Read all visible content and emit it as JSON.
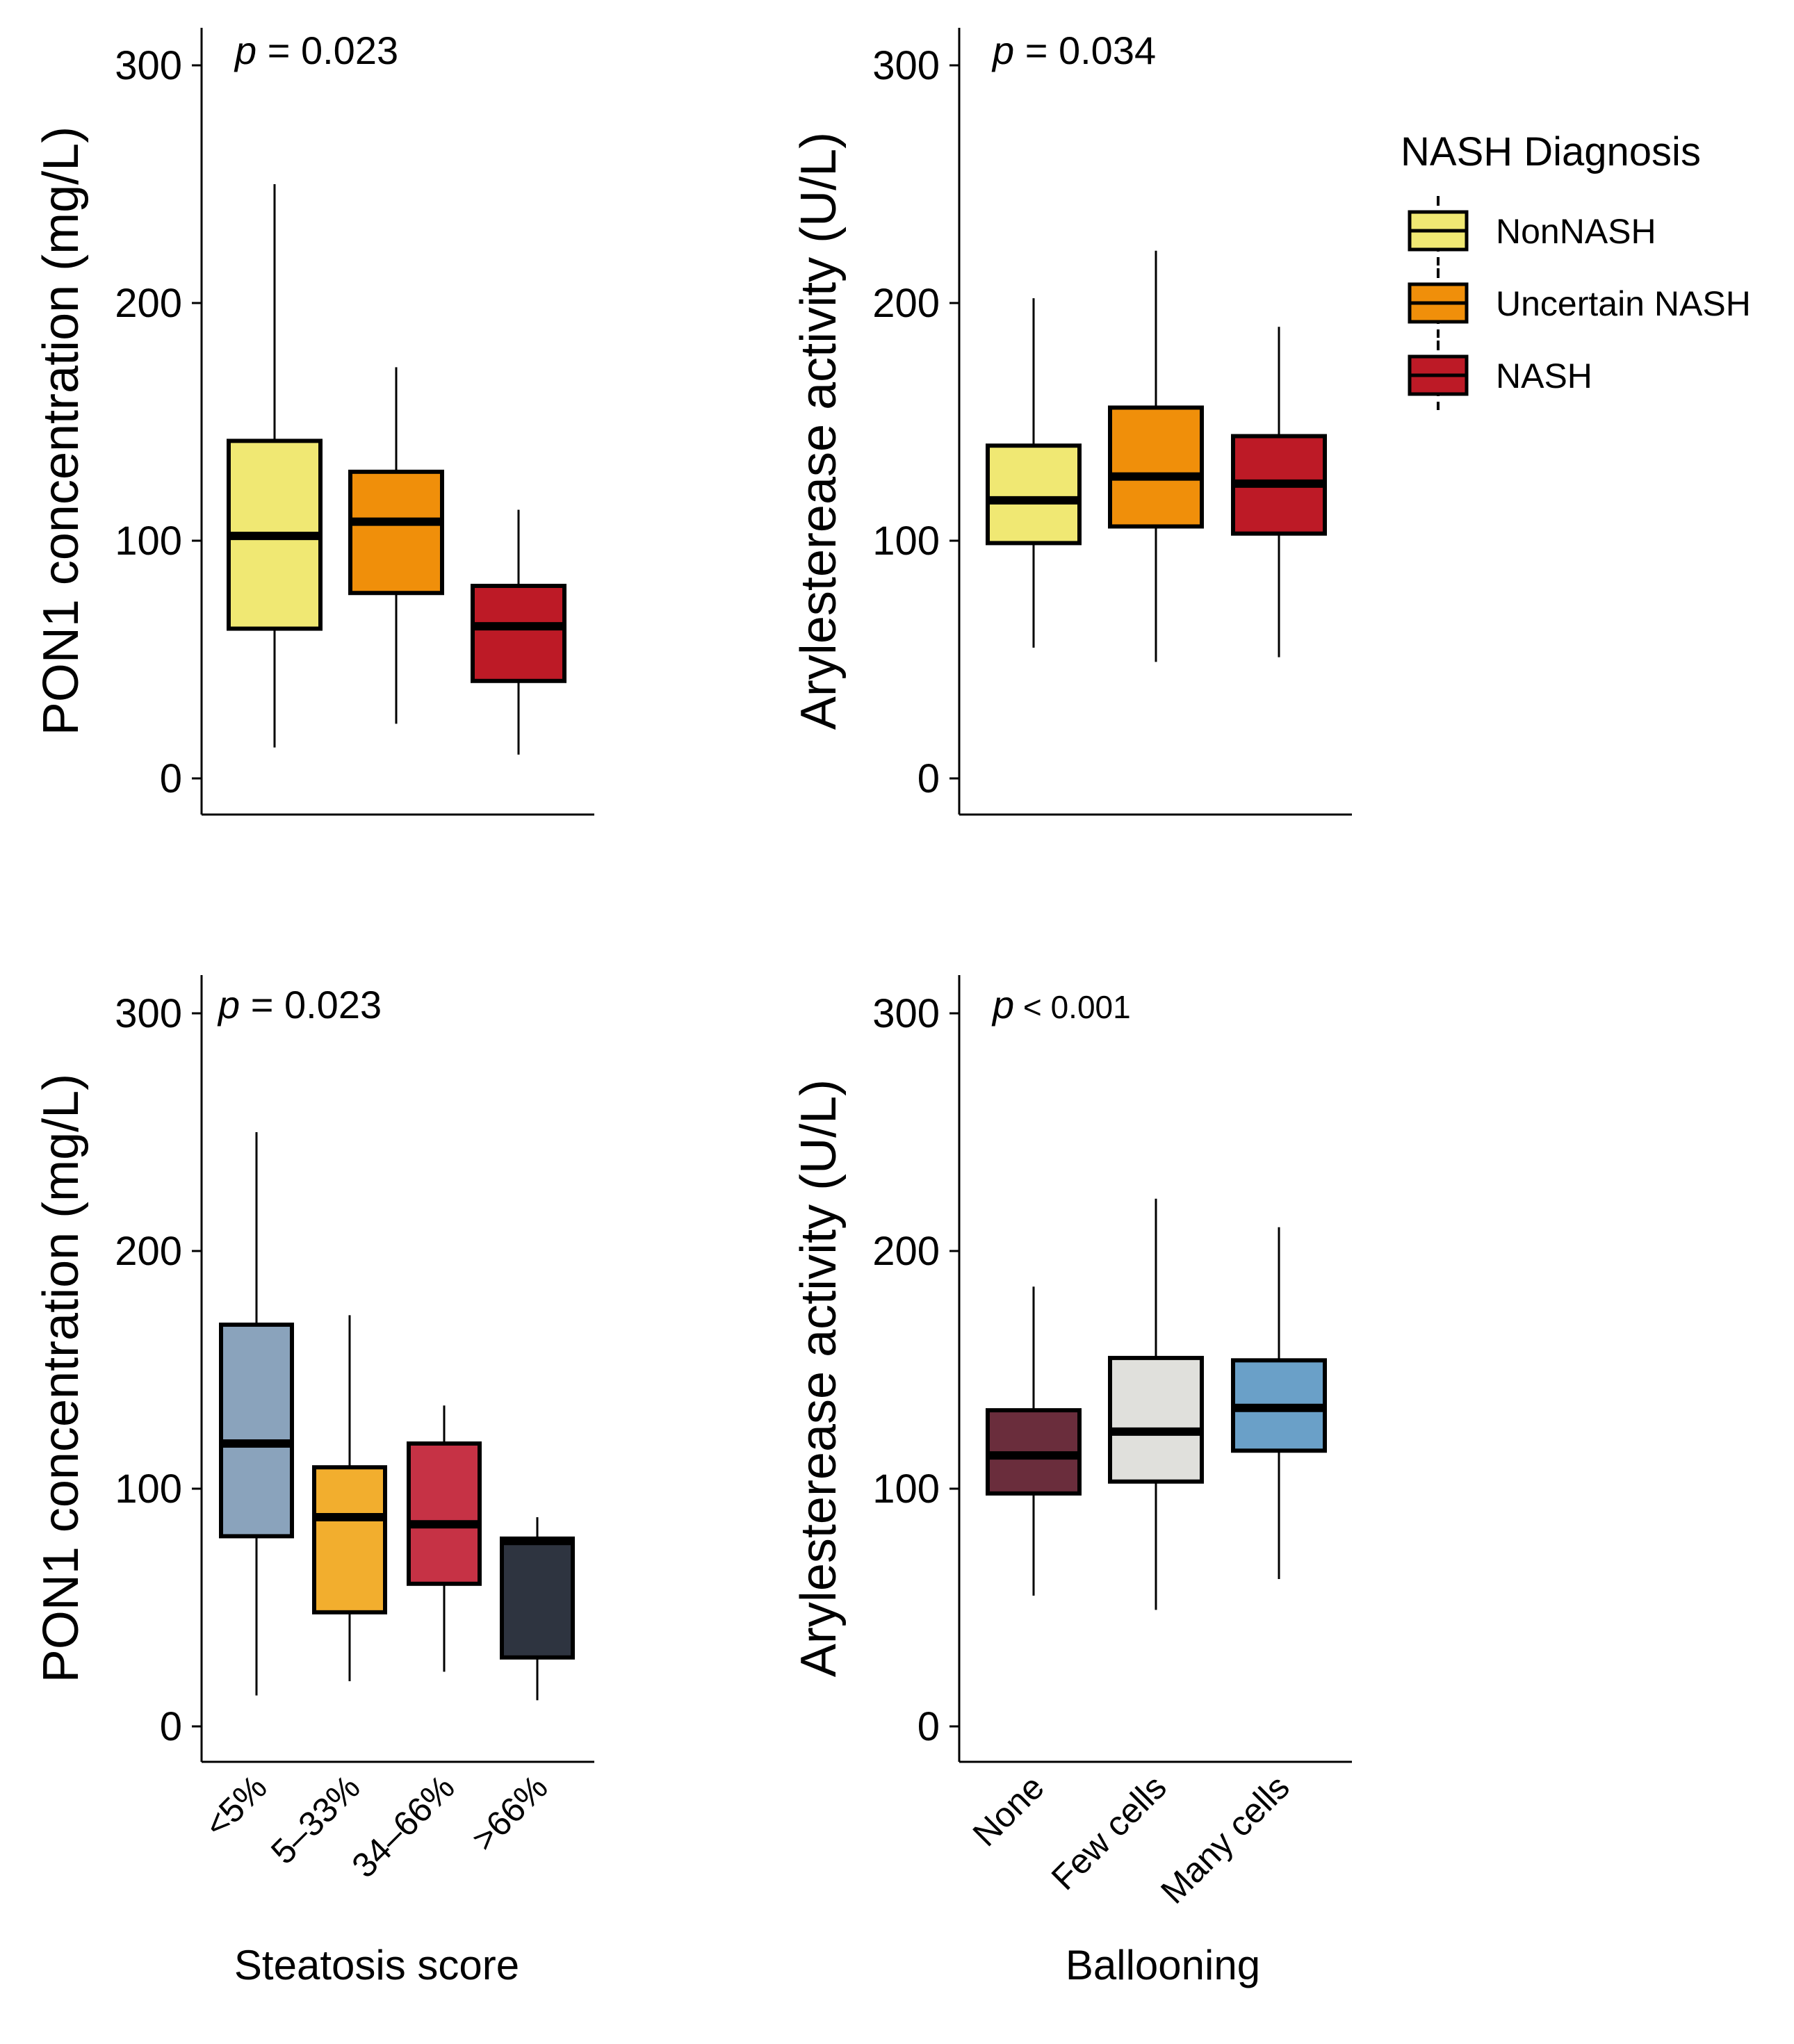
{
  "chart_data": [
    {
      "id": "top-left",
      "type": "boxplot",
      "ylabel": "PON1 concentration (mg/L)",
      "xlabel": "",
      "ylim": [
        0,
        300
      ],
      "yticks": [
        "0",
        "100",
        "200",
        "300"
      ],
      "pvalue": {
        "symbol": "p",
        "text": " = 0.023"
      },
      "categories": [
        "NonNASH",
        "Uncertain NASH",
        "NASH"
      ],
      "show_category_labels": false,
      "boxes": [
        {
          "category": "NonNASH",
          "min": 13,
          "q1": 63,
          "median": 102,
          "q3": 142,
          "max": 250,
          "color": "#f0e873"
        },
        {
          "category": "Uncertain NASH",
          "min": 23,
          "q1": 78,
          "median": 108,
          "q3": 129,
          "max": 173,
          "color": "#f08f0a"
        },
        {
          "category": "NASH",
          "min": 10,
          "q1": 41,
          "median": 64,
          "q3": 81,
          "max": 113,
          "color": "#bd1a26"
        }
      ]
    },
    {
      "id": "top-right",
      "type": "boxplot",
      "ylabel": "Arylesterease activity (U/L)",
      "xlabel": "",
      "ylim": [
        0,
        300
      ],
      "yticks": [
        "0",
        "100",
        "200",
        "300"
      ],
      "pvalue": {
        "symbol": "p",
        "text": " = 0.034"
      },
      "categories": [
        "NonNASH",
        "Uncertain NASH",
        "NASH"
      ],
      "show_category_labels": false,
      "boxes": [
        {
          "category": "NonNASH",
          "min": 55,
          "q1": 99,
          "median": 117,
          "q3": 140,
          "max": 202,
          "color": "#f0e873"
        },
        {
          "category": "Uncertain NASH",
          "min": 49,
          "q1": 106,
          "median": 127,
          "q3": 156,
          "max": 222,
          "color": "#f08f0a"
        },
        {
          "category": "NASH",
          "min": 51,
          "q1": 103,
          "median": 124,
          "q3": 144,
          "max": 190,
          "color": "#bd1a26"
        }
      ]
    },
    {
      "id": "bottom-left",
      "type": "boxplot",
      "ylabel": "PON1 concentration (mg/L)",
      "xlabel": "Steatosis score",
      "ylim": [
        0,
        300
      ],
      "yticks": [
        "0",
        "100",
        "200",
        "300"
      ],
      "pvalue": {
        "symbol": "p",
        "text": " = 0.023"
      },
      "categories": [
        "<5%",
        "5–33%",
        "34–66%",
        ">66%"
      ],
      "show_category_labels": true,
      "boxes": [
        {
          "category": "<5%",
          "min": 13,
          "q1": 80,
          "median": 119,
          "q3": 169,
          "max": 250,
          "color": "#8aa3bc"
        },
        {
          "category": "5–33%",
          "min": 19,
          "q1": 48,
          "median": 88,
          "q3": 109,
          "max": 173,
          "color": "#f2ae2e"
        },
        {
          "category": "34–66%",
          "min": 23,
          "q1": 60,
          "median": 85,
          "q3": 119,
          "max": 135,
          "color": "#c63245"
        },
        {
          "category": ">66%",
          "min": 11,
          "q1": 29,
          "median": 78,
          "q3": 79,
          "max": 88,
          "color": "#2e3440"
        }
      ]
    },
    {
      "id": "bottom-right",
      "type": "boxplot",
      "ylabel": "Arylesterease activity (U/L)",
      "xlabel": "Ballooning",
      "ylim": [
        0,
        300
      ],
      "yticks": [
        "0",
        "100",
        "200",
        "300"
      ],
      "pvalue": {
        "symbol": "p",
        "text": " < 0.001"
      },
      "categories": [
        "None",
        "Few cells",
        "Many cells"
      ],
      "show_category_labels": true,
      "boxes": [
        {
          "category": "None",
          "min": 55,
          "q1": 98,
          "median": 114,
          "q3": 133,
          "max": 185,
          "color": "#6a2d3c"
        },
        {
          "category": "Few cells",
          "min": 49,
          "q1": 103,
          "median": 124,
          "q3": 155,
          "max": 222,
          "color": "#e0e0dc"
        },
        {
          "category": "Many cells",
          "min": 62,
          "q1": 116,
          "median": 134,
          "q3": 154,
          "max": 210,
          "color": "#6aa0c8"
        }
      ]
    }
  ],
  "legend": {
    "title": "NASH Diagnosis",
    "position": "top-right",
    "items": [
      {
        "label": "NonNASH",
        "color": "#f0e873"
      },
      {
        "label": "Uncertain NASH",
        "color": "#f08f0a"
      },
      {
        "label": "NASH",
        "color": "#bd1a26"
      }
    ]
  }
}
